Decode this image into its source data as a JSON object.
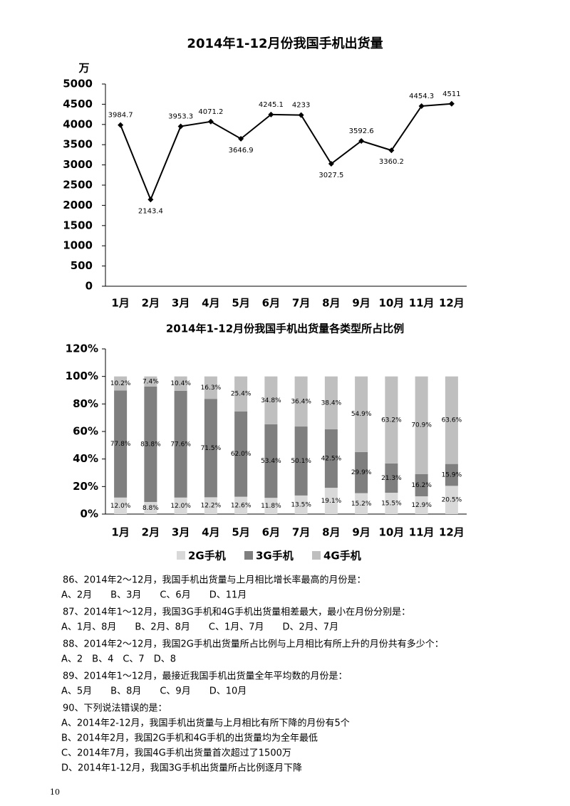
{
  "chart_data": [
    {
      "type": "line",
      "title": "2014年1-12月份我国手机出货量",
      "y_unit": "万",
      "categories": [
        "1月",
        "2月",
        "3月",
        "4月",
        "5月",
        "6月",
        "7月",
        "8月",
        "9月",
        "10月",
        "11月",
        "12月"
      ],
      "values": [
        3984.7,
        2143.4,
        3953.3,
        4071.2,
        3646.9,
        4245.1,
        4233,
        3027.5,
        3592.6,
        3360.2,
        4454.3,
        4511
      ],
      "color": "#000000",
      "ylim": [
        0,
        5000
      ],
      "yticks": [
        0,
        500,
        1000,
        1500,
        2000,
        2500,
        3000,
        3500,
        4000,
        4500,
        5000
      ]
    },
    {
      "type": "stacked-bar",
      "title": "2014年1-12月份我国手机出货量各类型所占比例",
      "categories": [
        "1月",
        "2月",
        "3月",
        "4月",
        "5月",
        "6月",
        "7月",
        "8月",
        "9月",
        "10月",
        "11月",
        "12月"
      ],
      "series": [
        {
          "name": "2G手机",
          "color": "#d9d9d9",
          "values": [
            12.0,
            8.8,
            12.0,
            12.2,
            12.6,
            11.8,
            13.5,
            19.1,
            15.2,
            15.5,
            12.9,
            20.5
          ],
          "value_labels": [
            "12.0%",
            "8.8%",
            "12.0%",
            "12.2%",
            "12.6%",
            "11.8%",
            "13.5%",
            "19.1%",
            "15.2%",
            "15.5%",
            "12.9%",
            "20.5%"
          ]
        },
        {
          "name": "3G手机",
          "color": "#7f7f7f",
          "values": [
            77.8,
            83.8,
            77.6,
            71.5,
            62.0,
            53.4,
            50.1,
            42.5,
            29.9,
            21.3,
            16.2,
            15.9
          ],
          "value_labels": [
            "77.8%",
            "83.8%",
            "77.6%",
            "71.5%",
            "62.0%",
            "53.4%",
            "50.1%",
            "42.5%",
            "29.9%",
            "21.3%",
            "16.2%",
            "15.9%"
          ]
        },
        {
          "name": "4G手机",
          "color": "#bfbfbf",
          "values": [
            10.2,
            7.4,
            10.4,
            16.3,
            25.4,
            34.8,
            36.4,
            38.4,
            54.9,
            63.2,
            70.9,
            63.6
          ],
          "value_labels": [
            "10.2%",
            "7.4%",
            "10.4%",
            "16.3%",
            "25.4%",
            "34.8%",
            "36.4%",
            "38.4%",
            "54.9%",
            "63.2%",
            "70.9%",
            "63.6%"
          ]
        }
      ],
      "ylim": [
        0,
        120
      ],
      "yticks": [
        {
          "value": 0,
          "label": "0%"
        },
        {
          "value": 20,
          "label": "20%"
        },
        {
          "value": 40,
          "label": "40%"
        },
        {
          "value": 60,
          "label": "60%"
        },
        {
          "value": 80,
          "label": "80%"
        },
        {
          "value": 100,
          "label": "100%"
        },
        {
          "value": 120,
          "label": "120%"
        }
      ],
      "legend": "bottom"
    }
  ],
  "questions": [
    {
      "stem": "86、2014年2～12月，我国手机出货量与上月相比增长率最高的月份是：",
      "options": [
        "A、2月　　B、3月　　C、6月　　D、11月"
      ]
    },
    {
      "stem": "87、2014年1～12月，我国3G手机和4G手机出货量相差最大，最小在月份分别是：",
      "options": [
        "A、1月、8月　　B、2月、8月　　C、1月、7月　　D、2月、7月"
      ]
    },
    {
      "stem": "88、2014年2～12月，我国2G手机出货量所占比例与上月相比有所上升的月份共有多少个：",
      "options": [
        "A、2　B、4　C、7　D、8"
      ]
    },
    {
      "stem": "89、2014年1～12月，最接近我国手机出货量全年平均数的月份是：",
      "options": [
        "A、5月　　B、8月　　C、9月　　D、10月"
      ]
    },
    {
      "stem": "90、下列说法错误的是：",
      "options": [
        "A、2014年2-12月，我国手机出货量与上月相比有所下降的月份有5个",
        "B、2014年2月，我国2G手机和4G手机的出货量均为全年最低",
        "C、2014年7月，我国4G手机出货量首次超过了1500万",
        "D、2014年1-12月，我国3G手机出货量所占比例逐月下降"
      ]
    }
  ],
  "page_number": "10"
}
